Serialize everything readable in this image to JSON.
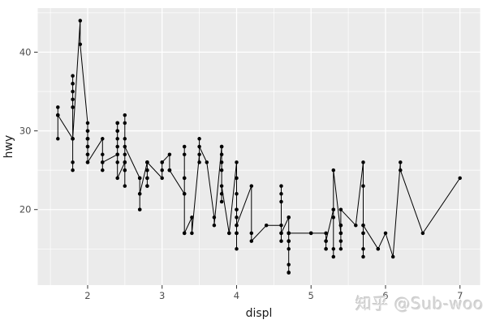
{
  "watermark": "知乎 @Sub-woo",
  "colors": {
    "panel_background": "#EBEBEB",
    "grid_major": "#FFFFFF",
    "grid_minor": "#FFFFFF",
    "point": "#000000",
    "line": "#000000",
    "tick_label": "#4D4D4D",
    "tick_mark": "#333333",
    "axis_title": "#1A1A1A",
    "outer_background": "#FFFFFF",
    "watermark_text": "#D7D7D7"
  },
  "chart_data": {
    "type": "scatter",
    "mark": "points connected by a line (geom_point + geom_line, ggplot2 gray theme)",
    "title": "",
    "xlabel": "displ",
    "ylabel": "hwy",
    "xlim": [
      1.33,
      7.27
    ],
    "ylim": [
      10.4,
      45.6
    ],
    "x_major_ticks": [
      2,
      3,
      4,
      5,
      6,
      7
    ],
    "x_minor_ticks": [
      1.5,
      2.5,
      3.5,
      4.5,
      5.5,
      6.5
    ],
    "y_major_ticks": [
      20,
      30,
      40
    ],
    "y_minor_ticks": [
      15,
      25,
      35,
      45
    ],
    "grid": "on",
    "legend": "none",
    "series_name": "hwy vs displ",
    "groups": [
      {
        "displ": 1.6,
        "hwy": [
          33,
          32,
          32,
          29,
          32
        ]
      },
      {
        "displ": 1.8,
        "hwy": [
          29,
          29,
          26,
          25,
          34,
          36,
          36,
          33,
          35,
          37,
          29,
          29
        ]
      },
      {
        "displ": 1.9,
        "hwy": [
          44,
          41
        ]
      },
      {
        "displ": 2.0,
        "hwy": [
          31,
          30,
          28,
          27,
          29,
          26,
          27,
          30,
          29,
          29,
          28,
          29,
          29,
          26
        ]
      },
      {
        "displ": 2.2,
        "hwy": [
          29,
          27,
          26,
          25,
          26
        ]
      },
      {
        "displ": 2.4,
        "hwy": [
          27,
          30,
          26,
          27,
          30,
          31,
          28,
          31,
          29,
          31,
          24
        ]
      },
      {
        "displ": 2.5,
        "hwy": [
          26,
          26,
          31,
          32,
          25,
          27,
          25,
          26,
          23,
          29,
          28
        ]
      },
      {
        "displ": 2.7,
        "hwy": [
          24,
          24,
          20,
          20,
          22,
          22
        ]
      },
      {
        "displ": 2.8,
        "hwy": [
          26,
          26,
          25,
          25,
          24,
          23,
          23,
          24,
          26,
          26
        ]
      },
      {
        "displ": 3.0,
        "hwy": [
          24,
          26,
          25,
          26
        ]
      },
      {
        "displ": 3.1,
        "hwy": [
          27,
          25,
          25,
          25,
          25
        ]
      },
      {
        "displ": 3.3,
        "hwy": [
          22,
          22,
          24,
          24,
          17,
          28,
          27,
          17
        ]
      },
      {
        "displ": 3.4,
        "hwy": [
          19,
          17
        ]
      },
      {
        "displ": 3.5,
        "hwy": [
          27,
          29,
          26,
          28
        ]
      },
      {
        "displ": 3.6,
        "hwy": [
          26
        ]
      },
      {
        "displ": 3.7,
        "hwy": [
          19,
          18
        ]
      },
      {
        "displ": 3.8,
        "hwy": [
          28,
          28,
          27,
          26,
          25,
          22,
          21,
          23
        ]
      },
      {
        "displ": 3.9,
        "hwy": [
          17,
          17
        ]
      },
      {
        "displ": 4.0,
        "hwy": [
          26,
          24,
          22,
          20,
          17,
          17,
          18,
          17,
          19,
          15,
          20,
          18
        ]
      },
      {
        "displ": 4.2,
        "hwy": [
          23,
          17,
          16
        ]
      },
      {
        "displ": 4.4,
        "hwy": [
          18
        ]
      },
      {
        "displ": 4.6,
        "hwy": [
          18,
          17,
          16,
          23,
          22,
          21,
          17
        ]
      },
      {
        "displ": 4.7,
        "hwy": [
          19,
          19,
          12,
          16,
          12,
          17,
          16,
          12,
          15,
          13,
          17,
          17,
          16,
          17
        ]
      },
      {
        "displ": 5.0,
        "hwy": [
          17,
          17
        ]
      },
      {
        "displ": 5.2,
        "hwy": [
          17,
          15,
          16,
          15,
          16
        ]
      },
      {
        "displ": 5.3,
        "hwy": [
          20,
          15,
          20,
          14,
          19,
          25
        ]
      },
      {
        "displ": 5.4,
        "hwy": [
          17,
          15,
          18,
          17,
          16,
          18,
          20
        ]
      },
      {
        "displ": 5.6,
        "hwy": [
          18
        ]
      },
      {
        "displ": 5.7,
        "hwy": [
          26,
          23,
          17,
          14,
          18,
          15,
          17,
          18
        ]
      },
      {
        "displ": 5.9,
        "hwy": [
          15,
          15
        ]
      },
      {
        "displ": 6.0,
        "hwy": [
          17
        ]
      },
      {
        "displ": 6.1,
        "hwy": [
          14
        ]
      },
      {
        "displ": 6.2,
        "hwy": [
          26,
          25
        ]
      },
      {
        "displ": 6.5,
        "hwy": [
          17
        ]
      },
      {
        "displ": 7.0,
        "hwy": [
          24
        ]
      }
    ]
  }
}
